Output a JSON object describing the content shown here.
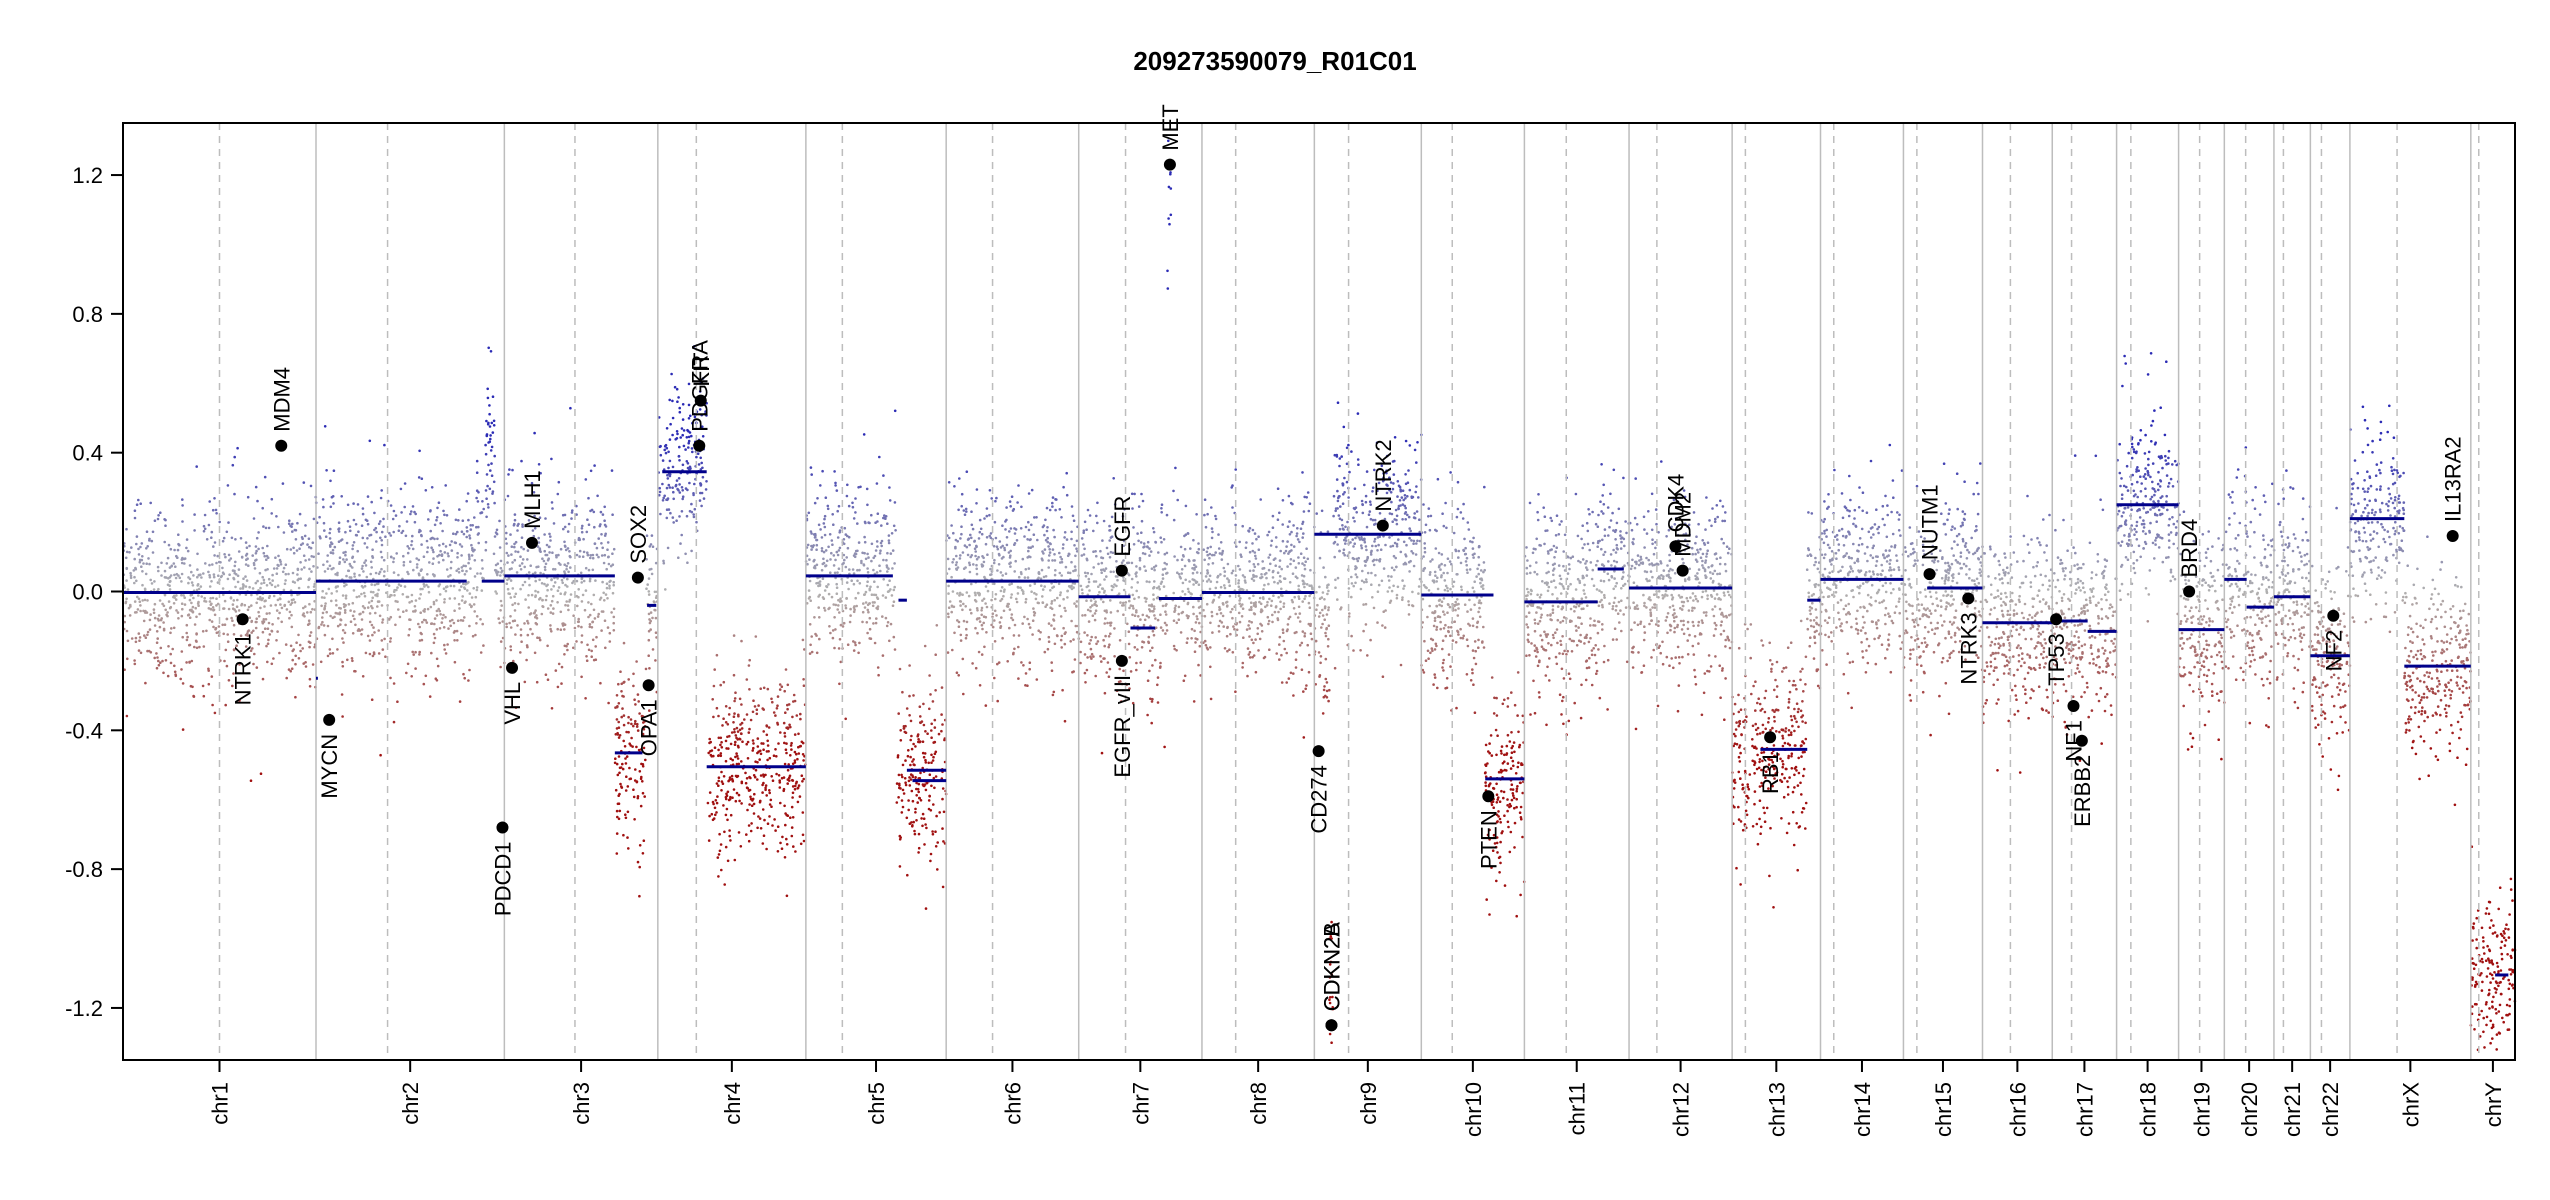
{
  "chart_data": {
    "type": "scatter",
    "title": "209273590079_R01C01",
    "xlabel": "",
    "ylabel": "",
    "ylim": [
      -1.35,
      1.35
    ],
    "yticks": [
      -1.2,
      -0.8,
      -0.4,
      0.0,
      0.4,
      0.8,
      1.2
    ],
    "ytick_labels": [
      "-1.2",
      "-0.8",
      "-0.4",
      "0.0",
      "0.4",
      "0.8",
      "1.2"
    ],
    "grid": false,
    "chromosomes": [
      {
        "name": "chr1",
        "label": "chr1",
        "size": 249.0,
        "centromere": 0.5
      },
      {
        "name": "chr2",
        "label": "chr2",
        "size": 243.0,
        "centromere": 0.38
      },
      {
        "name": "chr3",
        "label": "chr3",
        "size": 198.0,
        "centromere": 0.46
      },
      {
        "name": "chr4",
        "label": "chr4",
        "size": 191.0,
        "centromere": 0.26
      },
      {
        "name": "chr5",
        "label": "chr5",
        "size": 181.0,
        "centromere": 0.26
      },
      {
        "name": "chr6",
        "label": "chr6",
        "size": 171.0,
        "centromere": 0.35
      },
      {
        "name": "chr7",
        "label": "chr7",
        "size": 159.0,
        "centromere": 0.38
      },
      {
        "name": "chr8",
        "label": "chr8",
        "size": 145.0,
        "centromere": 0.3
      },
      {
        "name": "chr9",
        "label": "chr9",
        "size": 138.0,
        "centromere": 0.32
      },
      {
        "name": "chr10",
        "label": "chr10",
        "size": 133.0,
        "centromere": 0.3
      },
      {
        "name": "chr11",
        "label": "chr11",
        "size": 135.0,
        "centromere": 0.4
      },
      {
        "name": "chr12",
        "label": "chr12",
        "size": 133.0,
        "centromere": 0.27
      },
      {
        "name": "chr13",
        "label": "chr13",
        "size": 114.0,
        "centromere": 0.15
      },
      {
        "name": "chr14",
        "label": "chr14",
        "size": 107.0,
        "centromere": 0.16
      },
      {
        "name": "chr15",
        "label": "chr15",
        "size": 102.0,
        "centromere": 0.17
      },
      {
        "name": "chr16",
        "label": "chr16",
        "size": 90.0,
        "centromere": 0.4
      },
      {
        "name": "chr17",
        "label": "chr17",
        "size": 83.0,
        "centromere": 0.3
      },
      {
        "name": "chr18",
        "label": "chr18",
        "size": 80.0,
        "centromere": 0.23
      },
      {
        "name": "chr19",
        "label": "chr19",
        "size": 59.0,
        "centromere": 0.46
      },
      {
        "name": "chr20",
        "label": "chr20",
        "size": 64.0,
        "centromere": 0.43
      },
      {
        "name": "chr21",
        "label": "chr21",
        "size": 47.0,
        "centromere": 0.26
      },
      {
        "name": "chr22",
        "label": "chr22",
        "size": 51.0,
        "centromere": 0.28
      },
      {
        "name": "chrX",
        "label": "chrX",
        "size": 156.0,
        "centromere": 0.39
      },
      {
        "name": "chrY",
        "label": "chrY",
        "size": 57.0,
        "centromere": 0.18
      }
    ],
    "segments": [
      {
        "chrom": "chr1",
        "start": 0.0,
        "end": 1.0,
        "value": -0.003
      },
      {
        "chrom": "chr2",
        "start": 0.0,
        "end": 0.8,
        "value": 0.03
      },
      {
        "chrom": "chr2",
        "start": 0.88,
        "end": 1.0,
        "value": 0.03
      },
      {
        "chrom": "chr2",
        "start": 0.0,
        "end": 0.01,
        "value": -0.25
      },
      {
        "chrom": "chr3",
        "start": 0.0,
        "end": 0.72,
        "value": 0.045
      },
      {
        "chrom": "chr3",
        "start": 0.72,
        "end": 0.9,
        "value": -0.465
      },
      {
        "chrom": "chr3",
        "start": 0.93,
        "end": 0.99,
        "value": -0.04
      },
      {
        "chrom": "chr4",
        "start": 0.03,
        "end": 0.33,
        "value": 0.345
      },
      {
        "chrom": "chr4",
        "start": 0.33,
        "end": 1.0,
        "value": -0.505
      },
      {
        "chrom": "chr5",
        "start": 0.0,
        "end": 0.62,
        "value": 0.045
      },
      {
        "chrom": "chr5",
        "start": 0.66,
        "end": 0.72,
        "value": -0.025
      },
      {
        "chrom": "chr5",
        "start": 0.72,
        "end": 1.0,
        "value": -0.515
      },
      {
        "chrom": "chr5",
        "start": 0.76,
        "end": 1.0,
        "value": -0.545
      },
      {
        "chrom": "chr6",
        "start": 0.0,
        "end": 1.0,
        "value": 0.03
      },
      {
        "chrom": "chr7",
        "start": 0.0,
        "end": 0.42,
        "value": -0.015
      },
      {
        "chrom": "chr7",
        "start": 0.42,
        "end": 0.62,
        "value": -0.105
      },
      {
        "chrom": "chr7",
        "start": 0.65,
        "end": 1.0,
        "value": -0.02
      },
      {
        "chrom": "chr8",
        "start": 0.0,
        "end": 1.0,
        "value": -0.003
      },
      {
        "chrom": "chr9",
        "start": 0.0,
        "end": 1.0,
        "value": 0.165
      },
      {
        "chrom": "chr10",
        "start": 0.0,
        "end": 0.7,
        "value": -0.01
      },
      {
        "chrom": "chr10",
        "start": 0.62,
        "end": 1.0,
        "value": -0.54
      },
      {
        "chrom": "chr11",
        "start": 0.0,
        "end": 0.7,
        "value": -0.03
      },
      {
        "chrom": "chr11",
        "start": 0.7,
        "end": 0.95,
        "value": 0.065
      },
      {
        "chrom": "chr12",
        "start": 0.0,
        "end": 1.0,
        "value": 0.01
      },
      {
        "chrom": "chr13",
        "start": 0.32,
        "end": 0.85,
        "value": -0.455
      },
      {
        "chrom": "chr13",
        "start": 0.85,
        "end": 1.0,
        "value": -0.025
      },
      {
        "chrom": "chr14",
        "start": 0.0,
        "end": 1.0,
        "value": 0.035
      },
      {
        "chrom": "chr15",
        "start": 0.3,
        "end": 1.0,
        "value": 0.01
      },
      {
        "chrom": "chr16",
        "start": 0.0,
        "end": 1.0,
        "value": -0.09
      },
      {
        "chrom": "chr17",
        "start": 0.0,
        "end": 0.55,
        "value": -0.085
      },
      {
        "chrom": "chr17",
        "start": 0.55,
        "end": 1.0,
        "value": -0.115
      },
      {
        "chrom": "chr18",
        "start": 0.0,
        "end": 1.0,
        "value": 0.25
      },
      {
        "chrom": "chr19",
        "start": 0.0,
        "end": 1.0,
        "value": -0.11
      },
      {
        "chrom": "chr20",
        "start": 0.0,
        "end": 0.45,
        "value": 0.035
      },
      {
        "chrom": "chr20",
        "start": 0.45,
        "end": 1.0,
        "value": -0.045
      },
      {
        "chrom": "chr21",
        "start": 0.0,
        "end": 1.0,
        "value": -0.015
      },
      {
        "chrom": "chr22",
        "start": 0.0,
        "end": 1.0,
        "value": -0.185
      },
      {
        "chrom": "chrX",
        "start": 0.0,
        "end": 0.45,
        "value": 0.21
      },
      {
        "chrom": "chrX",
        "start": 0.45,
        "end": 1.0,
        "value": -0.215
      },
      {
        "chrom": "chrY",
        "start": 0.55,
        "end": 0.85,
        "value": -1.105
      }
    ],
    "genes": [
      {
        "name": "NTRK1",
        "chrom": "chr1",
        "pos": 0.62,
        "value": -0.08,
        "label_side": "below"
      },
      {
        "name": "MDM4",
        "chrom": "chr1",
        "pos": 0.82,
        "value": 0.42,
        "label_side": "above"
      },
      {
        "name": "MYCN",
        "chrom": "chr2",
        "pos": 0.07,
        "value": -0.37,
        "label_side": "below"
      },
      {
        "name": "VHL",
        "chrom": "chr3",
        "pos": 0.05,
        "value": -0.22,
        "label_side": "below"
      },
      {
        "name": "MLH1",
        "chrom": "chr3",
        "pos": 0.18,
        "value": 0.14,
        "label_side": "above"
      },
      {
        "name": "PDCD1",
        "chrom": "chr2",
        "pos": 0.99,
        "value": -0.68,
        "label_side": "below"
      },
      {
        "name": "SOX2",
        "chrom": "chr3",
        "pos": 0.87,
        "value": 0.04,
        "label_side": "above"
      },
      {
        "name": "OPA1",
        "chrom": "chr3",
        "pos": 0.94,
        "value": -0.27,
        "label_side": "below"
      },
      {
        "name": "PDGFRA",
        "chrom": "chr4",
        "pos": 0.28,
        "value": 0.42,
        "label_side": "above"
      },
      {
        "name": "KIT",
        "chrom": "chr4",
        "pos": 0.29,
        "value": 0.55,
        "label_side": "above"
      },
      {
        "name": "EGFR",
        "chrom": "chr7",
        "pos": 0.35,
        "value": 0.06,
        "label_side": "above"
      },
      {
        "name": "EGFR_vIII",
        "chrom": "chr7",
        "pos": 0.35,
        "value": -0.2,
        "label_side": "below"
      },
      {
        "name": "MET",
        "chrom": "chr7",
        "pos": 0.74,
        "value": 1.23,
        "label_side": "above"
      },
      {
        "name": "CD274",
        "chrom": "chr9",
        "pos": 0.04,
        "value": -0.46,
        "label_side": "below"
      },
      {
        "name": "CDKN2A",
        "chrom": "chr9",
        "pos": 0.16,
        "value": -1.25,
        "label_side": "above"
      },
      {
        "name": "CDKN2B",
        "chrom": "chr9",
        "pos": 0.16,
        "value": -1.25,
        "label_side": "above"
      },
      {
        "name": "NTRK2",
        "chrom": "chr9",
        "pos": 0.64,
        "value": 0.19,
        "label_side": "above"
      },
      {
        "name": "PTEN",
        "chrom": "chr10",
        "pos": 0.65,
        "value": -0.59,
        "label_side": "below"
      },
      {
        "name": "CDK4",
        "chrom": "chr12",
        "pos": 0.45,
        "value": 0.13,
        "label_side": "above"
      },
      {
        "name": "MDM2",
        "chrom": "chr12",
        "pos": 0.52,
        "value": 0.06,
        "label_side": "above"
      },
      {
        "name": "RB1",
        "chrom": "chr13",
        "pos": 0.43,
        "value": -0.42,
        "label_side": "below"
      },
      {
        "name": "NUTM1",
        "chrom": "chr15",
        "pos": 0.33,
        "value": 0.05,
        "label_side": "above"
      },
      {
        "name": "NTRK3",
        "chrom": "chr15",
        "pos": 0.82,
        "value": -0.02,
        "label_side": "below"
      },
      {
        "name": "TP53",
        "chrom": "chr17",
        "pos": 0.06,
        "value": -0.08,
        "label_side": "below"
      },
      {
        "name": "NF1",
        "chrom": "chr17",
        "pos": 0.33,
        "value": -0.33,
        "label_side": "below"
      },
      {
        "name": "ERBB2",
        "chrom": "chr17",
        "pos": 0.46,
        "value": -0.43,
        "label_side": "below"
      },
      {
        "name": "BRD4",
        "chrom": "chr19",
        "pos": 0.23,
        "value": 0.0,
        "label_side": "above"
      },
      {
        "name": "NF2",
        "chrom": "chr22",
        "pos": 0.58,
        "value": -0.07,
        "label_side": "below"
      },
      {
        "name": "IL13RA2",
        "chrom": "chrX",
        "pos": 0.85,
        "value": 0.16,
        "label_side": "above"
      }
    ],
    "point_profiles": [
      {
        "chrom": "chr1",
        "regions": [
          [
            0.0,
            1.0,
            -0.0
          ]
        ]
      },
      {
        "chrom": "chr2",
        "regions": [
          [
            0.0,
            0.8,
            0.03
          ],
          [
            0.8,
            0.9,
            0.05
          ],
          [
            0.9,
            0.95,
            0.45
          ],
          [
            0.95,
            1.0,
            0.03
          ]
        ]
      },
      {
        "chrom": "chr3",
        "regions": [
          [
            0.0,
            0.72,
            0.04
          ],
          [
            0.72,
            0.92,
            -0.46
          ],
          [
            0.92,
            1.0,
            -0.04
          ]
        ]
      },
      {
        "chrom": "chr4",
        "regions": [
          [
            0.0,
            0.33,
            0.35
          ],
          [
            0.33,
            1.0,
            -0.5
          ]
        ]
      },
      {
        "chrom": "chr5",
        "regions": [
          [
            0.0,
            0.64,
            0.05
          ],
          [
            0.64,
            1.0,
            -0.52
          ]
        ]
      },
      {
        "chrom": "chr6",
        "regions": [
          [
            0.0,
            1.0,
            0.03
          ]
        ]
      },
      {
        "chrom": "chr7",
        "regions": [
          [
            0.0,
            0.72,
            -0.02
          ],
          [
            0.72,
            0.76,
            1.15
          ],
          [
            0.76,
            1.0,
            -0.03
          ]
        ]
      },
      {
        "chrom": "chr8",
        "regions": [
          [
            0.0,
            1.0,
            -0.0
          ]
        ]
      },
      {
        "chrom": "chr9",
        "regions": [
          [
            0.0,
            0.14,
            -0.1
          ],
          [
            0.14,
            0.18,
            -1.2
          ],
          [
            0.18,
            1.0,
            0.16
          ]
        ]
      },
      {
        "chrom": "chr10",
        "regions": [
          [
            0.0,
            0.62,
            -0.01
          ],
          [
            0.62,
            1.0,
            -0.55
          ]
        ]
      },
      {
        "chrom": "chr11",
        "regions": [
          [
            0.0,
            0.7,
            -0.03
          ],
          [
            0.7,
            1.0,
            0.06
          ]
        ]
      },
      {
        "chrom": "chr12",
        "regions": [
          [
            0.0,
            1.0,
            0.01
          ]
        ]
      },
      {
        "chrom": "chr13",
        "regions": [
          [
            0.0,
            0.85,
            -0.45
          ],
          [
            0.85,
            1.0,
            -0.03
          ]
        ]
      },
      {
        "chrom": "chr14",
        "regions": [
          [
            0.0,
            1.0,
            0.04
          ]
        ]
      },
      {
        "chrom": "chr15",
        "regions": [
          [
            0.0,
            0.35,
            -0.05
          ],
          [
            0.35,
            1.0,
            0.01
          ]
        ]
      },
      {
        "chrom": "chr16",
        "regions": [
          [
            0.0,
            1.0,
            -0.09
          ]
        ]
      },
      {
        "chrom": "chr17",
        "regions": [
          [
            0.0,
            1.0,
            -0.1
          ]
        ]
      },
      {
        "chrom": "chr18",
        "regions": [
          [
            0.0,
            1.0,
            0.25
          ]
        ]
      },
      {
        "chrom": "chr19",
        "regions": [
          [
            0.0,
            1.0,
            -0.11
          ]
        ]
      },
      {
        "chrom": "chr20",
        "regions": [
          [
            0.0,
            0.45,
            0.03
          ],
          [
            0.45,
            1.0,
            -0.05
          ]
        ]
      },
      {
        "chrom": "chr21",
        "regions": [
          [
            0.0,
            1.0,
            -0.02
          ]
        ]
      },
      {
        "chrom": "chr22",
        "regions": [
          [
            0.0,
            1.0,
            -0.18
          ]
        ]
      },
      {
        "chrom": "chrX",
        "regions": [
          [
            0.0,
            0.45,
            0.21
          ],
          [
            0.45,
            1.0,
            -0.21
          ]
        ]
      },
      {
        "chrom": "chrY",
        "regions": [
          [
            0.0,
            1.0,
            -1.1
          ]
        ]
      }
    ]
  },
  "colors": {
    "segment": "#00008b",
    "gain_point": "#2b2bb5",
    "loss_point": "#a01010",
    "neutral_point": "#b0b0b0",
    "gene_dot": "#000000",
    "chrom_boundary": "#bdbdbd",
    "centromere": "#bdbdbd",
    "axis": "#000000"
  }
}
